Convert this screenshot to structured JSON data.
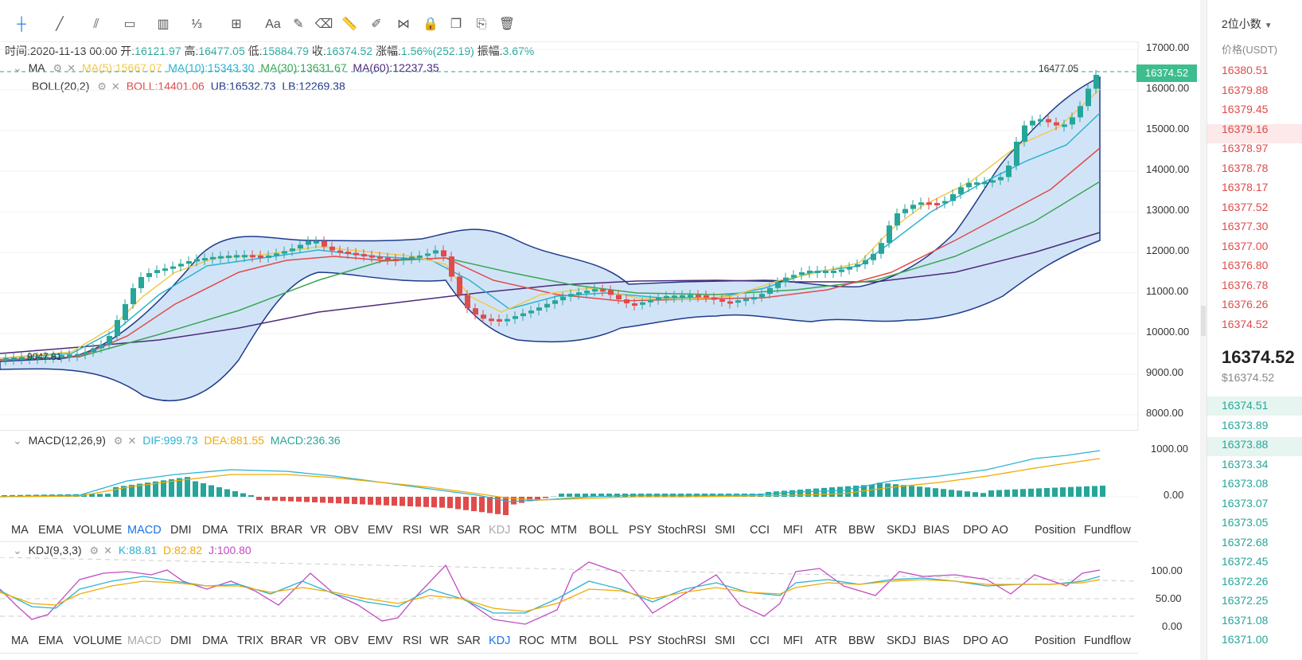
{
  "ohlc": {
    "time_label": "时间:",
    "time": "2020-11-13 00:00",
    "open_label": "开:",
    "open": "16121.97",
    "high_label": "高:",
    "high": "16477.05",
    "low_label": "低:",
    "low": "15884.79",
    "close_label": "收:",
    "close": "16374.52",
    "change_label": "涨幅:",
    "change": "1.56%(252.19)",
    "amp_label": "振幅:",
    "amp": "3.67%"
  },
  "ma": {
    "name": "MA",
    "ma5": "MA(5):15667.07",
    "ma10": "MA(10):15343.30",
    "ma30": "MA(30):13631.67",
    "ma60": "MA(60):12237.35"
  },
  "boll": {
    "name": "BOLL(20,2)",
    "mid": "BOLL:14401.06",
    "ub": "UB:16532.73",
    "lb": "LB:12269.38"
  },
  "macd": {
    "name": "MACD(12,26,9)",
    "dif": "DIF:999.73",
    "dea": "DEA:881.55",
    "macd": "MACD:236.36"
  },
  "kdj": {
    "name": "KDJ(9,3,3)",
    "k": "K:88.81",
    "d": "D:82.82",
    "j": "J:100.80"
  },
  "main_axis": [
    "17000.00",
    "16000.00",
    "15000.00",
    "14000.00",
    "13000.00",
    "12000.00",
    "11000.00",
    "10000.00",
    "9000.00",
    "8000.00"
  ],
  "macd_axis": [
    "1000.00",
    "0.00"
  ],
  "kdj_axis": [
    "100.00",
    "50.00",
    "0.00"
  ],
  "last_price_tag": "16374.52",
  "high_marker": "16477.05",
  "low_marker": "9047.81",
  "indicator_tabs": [
    "MA",
    "EMA",
    "VOLUME",
    "MACD",
    "DMI",
    "DMA",
    "TRIX",
    "BRAR",
    "VR",
    "OBV",
    "EMV",
    "RSI",
    "WR",
    "SAR",
    "KDJ",
    "ROC",
    "MTM",
    "BOLL",
    "PSY",
    "StochRSI",
    "SMI",
    "CCI",
    "MFI",
    "ATR",
    "BBW",
    "SKDJ",
    "BIAS",
    "DPO",
    "AO",
    "Position",
    "Fundflow"
  ],
  "colors": {
    "up": "#26a69a",
    "down": "#e04b4b",
    "accent": "#1a73e8",
    "ma5": "#f2c94c",
    "ma10": "#2bb3d1",
    "ma30": "#3aa655",
    "ma60": "#4b2a7b",
    "boll_fill": "#cfe3f7",
    "boll_line": "#1f3a8a"
  },
  "right_panel": {
    "decimals": "2位小数",
    "price_label": "价格(USDT)",
    "asks": [
      "16380.51",
      "16379.88",
      "16379.45",
      "16379.16",
      "16378.97",
      "16378.78",
      "16378.17",
      "16377.52",
      "16377.30",
      "16377.00",
      "16376.80",
      "16376.78",
      "16376.26",
      "16374.52"
    ],
    "last_price": "16374.52",
    "last_price_usd": "$16374.52",
    "bids": [
      "16374.51",
      "16373.89",
      "16373.88",
      "16373.34",
      "16373.08",
      "16373.07",
      "16373.05",
      "16372.68",
      "16372.45",
      "16372.26",
      "16372.25",
      "16371.08",
      "16371.00"
    ]
  }
}
